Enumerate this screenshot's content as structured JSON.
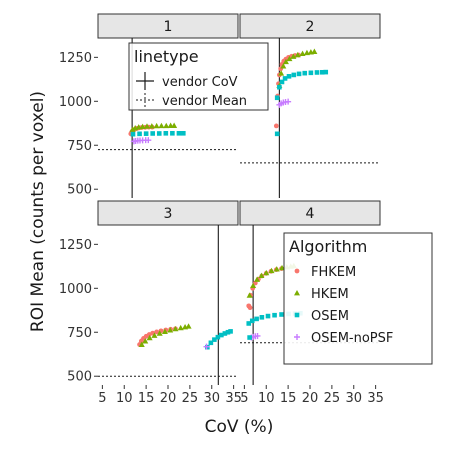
{
  "chart_data": {
    "type": "scatter",
    "xlabel": "CoV (%)",
    "ylabel": "ROI Mean (counts per voxel)",
    "xlim": [
      4,
      36
    ],
    "ylim": [
      450,
      1360
    ],
    "x_ticks": [
      "5",
      "10",
      "15",
      "20",
      "25",
      "30",
      "35"
    ],
    "y_ticks": [
      "500",
      "750",
      "1000",
      "1250"
    ],
    "panels": [
      {
        "label": "1",
        "vendor_cov": 11.8,
        "vendor_mean": 725,
        "series": [
          {
            "name": "FHKEM",
            "x": [
              11.5,
              11.7,
              11.9,
              12.2,
              12.5,
              12.9,
              13.4,
              14.0,
              14.8,
              15.6,
              16.4
            ],
            "y": [
              815,
              825,
              832,
              838,
              842,
              846,
              849,
              851,
              852,
              853,
              853
            ]
          },
          {
            "name": "HKEM",
            "x": [
              11.9,
              12.5,
              13.3,
              14.2,
              15.2,
              16.3,
              17.4,
              18.5,
              19.6,
              20.6,
              21.4
            ],
            "y": [
              840,
              848,
              853,
              856,
              858,
              859,
              860,
              861,
              861,
              862,
              862
            ]
          },
          {
            "name": "OSEM",
            "x": [
              12.0,
              13.5,
              15.0,
              16.5,
              18.0,
              19.5,
              21.0,
              22.5,
              23.5
            ],
            "y": [
              813,
              815,
              816,
              817,
              817,
              818,
              818,
              818,
              818
            ]
          },
          {
            "name": "OSEM-noPSF",
            "x": [
              12.2,
              12.6,
              13.1,
              13.6,
              14.2,
              14.9,
              15.5
            ],
            "y": [
              772,
              774,
              776,
              777,
              778,
              779,
              779
            ]
          }
        ]
      },
      {
        "label": "2",
        "vendor_cov": 13.0,
        "vendor_mean": 650,
        "series": [
          {
            "name": "FHKEM",
            "x": [
              12.6,
              12.8,
              13.0,
              13.3,
              13.6,
              14.0,
              14.5,
              15.1,
              15.8,
              16.6,
              17.4
            ],
            "y": [
              1030,
              1100,
              1150,
              1185,
              1210,
              1228,
              1240,
              1250,
              1256,
              1260,
              1263
            ]
          },
          {
            "name": "HKEM",
            "x": [
              13.0,
              13.4,
              13.9,
              14.5,
              15.3,
              16.2,
              17.2,
              18.3,
              19.3,
              20.2,
              21.0
            ],
            "y": [
              1090,
              1160,
              1200,
              1225,
              1242,
              1255,
              1264,
              1271,
              1276,
              1280,
              1283
            ]
          },
          {
            "name": "OSEM",
            "x": [
              12.5,
              13.0,
              13.6,
              14.3,
              15.2,
              16.3,
              17.5,
              18.8,
              20.2,
              21.6,
              22.8,
              23.6
            ],
            "y": [
              1020,
              1080,
              1110,
              1130,
              1142,
              1150,
              1156,
              1160,
              1162,
              1164,
              1165,
              1166
            ]
          },
          {
            "name": "OSEM-noPSF",
            "x": [
              13.0,
              13.4,
              13.9,
              14.4,
              15.0
            ],
            "y": [
              980,
              988,
              993,
              996,
              998
            ]
          }
        ],
        "extra_points": [
          {
            "name": "FHKEM",
            "x": 12.3,
            "y": 860
          },
          {
            "name": "OSEM",
            "x": 12.5,
            "y": 815
          }
        ]
      },
      {
        "label": "3",
        "vendor_cov": 31.5,
        "vendor_mean": 500,
        "series": [
          {
            "name": "FHKEM",
            "x": [
              13.5,
              13.9,
              14.4,
              15.0,
              15.7,
              16.5,
              17.4,
              18.4,
              19.5,
              20.6,
              21.7
            ],
            "y": [
              680,
              700,
              715,
              727,
              737,
              745,
              752,
              758,
              763,
              767,
              770
            ]
          },
          {
            "name": "HKEM",
            "x": [
              14.0,
              14.8,
              15.8,
              16.9,
              18.1,
              19.3,
              20.5,
              21.7,
              22.9,
              23.9,
              24.7
            ],
            "y": [
              680,
              700,
              718,
              732,
              744,
              754,
              762,
              769,
              775,
              780,
              784
            ]
          },
          {
            "name": "OSEM",
            "x": [
              29.0,
              29.8,
              30.6,
              31.4,
              32.2,
              33.0,
              33.7,
              34.3
            ],
            "y": [
              665,
              690,
              708,
              722,
              734,
              743,
              750,
              755
            ]
          },
          {
            "name": "OSEM-noPSF",
            "x": [
              28.8
            ],
            "y": [
              668
            ]
          }
        ]
      },
      {
        "label": "4",
        "vendor_cov": 7.0,
        "vendor_mean": 690,
        "series": [
          {
            "name": "FHKEM",
            "x": [
              6.0,
              6.4,
              6.9,
              7.5,
              8.2,
              9.0,
              10.0,
              11.1,
              12.3,
              13.5
            ],
            "y": [
              900,
              960,
              1000,
              1030,
              1052,
              1070,
              1085,
              1097,
              1106,
              1112
            ]
          },
          {
            "name": "HKEM",
            "x": [
              6.2,
              7.0,
              7.9,
              8.9,
              10.0,
              11.2,
              12.4,
              13.6,
              14.7,
              15.6,
              16.3
            ],
            "y": [
              960,
              1015,
              1050,
              1072,
              1088,
              1100,
              1109,
              1116,
              1121,
              1125,
              1128
            ]
          },
          {
            "name": "OSEM",
            "x": [
              6.0,
              6.8,
              7.8,
              9.0,
              10.4,
              11.9,
              13.5,
              15.1,
              16.6,
              17.8
            ],
            "y": [
              800,
              815,
              826,
              835,
              842,
              847,
              851,
              854,
              856,
              858
            ]
          },
          {
            "name": "OSEM-noPSF",
            "x": [
              6.6,
              7.0,
              7.5,
              8.0
            ],
            "y": [
              720,
              724,
              727,
              729
            ]
          }
        ],
        "extra_points": [
          {
            "name": "FHKEM",
            "x": 6.3,
            "y": 890
          },
          {
            "name": "OSEM",
            "x": 6.2,
            "y": 720
          }
        ]
      }
    ],
    "legend_linetype": {
      "title": "linetype",
      "entries": [
        "vendor CoV",
        "vendor Mean"
      ],
      "placement": "top"
    },
    "legend_algorithm": {
      "title": "Algorithm",
      "entries": [
        "FHKEM",
        "HKEM",
        "OSEM",
        "OSEM-noPSF"
      ],
      "placement": "bottom-right"
    },
    "colors": {
      "FHKEM": "#F8766D",
      "HKEM": "#7CAE00",
      "OSEM": "#00BFC4",
      "OSEM-noPSF": "#C77CFF",
      "strip_fill": "#e6e6e6",
      "reference_line": "#1a1a1a"
    },
    "grid": false
  }
}
